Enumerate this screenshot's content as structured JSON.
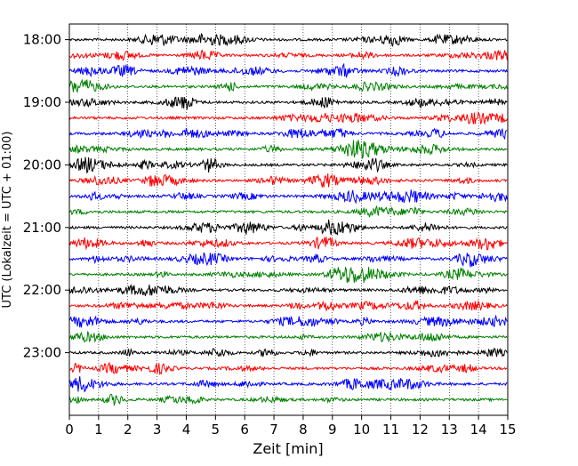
{
  "chart_data": {
    "type": "line",
    "title": "",
    "xlabel": "Zeit  [min]",
    "ylabel": "UTC (Lokalzeit = UTC + 01:00)",
    "xlim": [
      0,
      15
    ],
    "x_ticks": [
      "0",
      "1",
      "2",
      "3",
      "4",
      "5",
      "6",
      "7",
      "8",
      "9",
      "10",
      "11",
      "12",
      "13",
      "14",
      "15"
    ],
    "y_tick_labels": [
      "18:00",
      "19:00",
      "20:00",
      "21:00",
      "22:00",
      "23:00"
    ],
    "ylim": [
      "17:45",
      "24:00"
    ],
    "grid": "vertical dotted lines at each minute",
    "trace_start_times": [
      "18:00",
      "18:15",
      "18:30",
      "18:45",
      "19:00",
      "19:15",
      "19:30",
      "19:45",
      "20:00",
      "20:15",
      "20:30",
      "20:45",
      "21:00",
      "21:15",
      "21:30",
      "21:45",
      "22:00",
      "22:15",
      "22:30",
      "22:45",
      "23:00",
      "23:15",
      "23:30",
      "23:45"
    ],
    "trace_colors": [
      "#000000",
      "#ff0000",
      "#0000ff",
      "#008000"
    ],
    "legend": "none"
  }
}
